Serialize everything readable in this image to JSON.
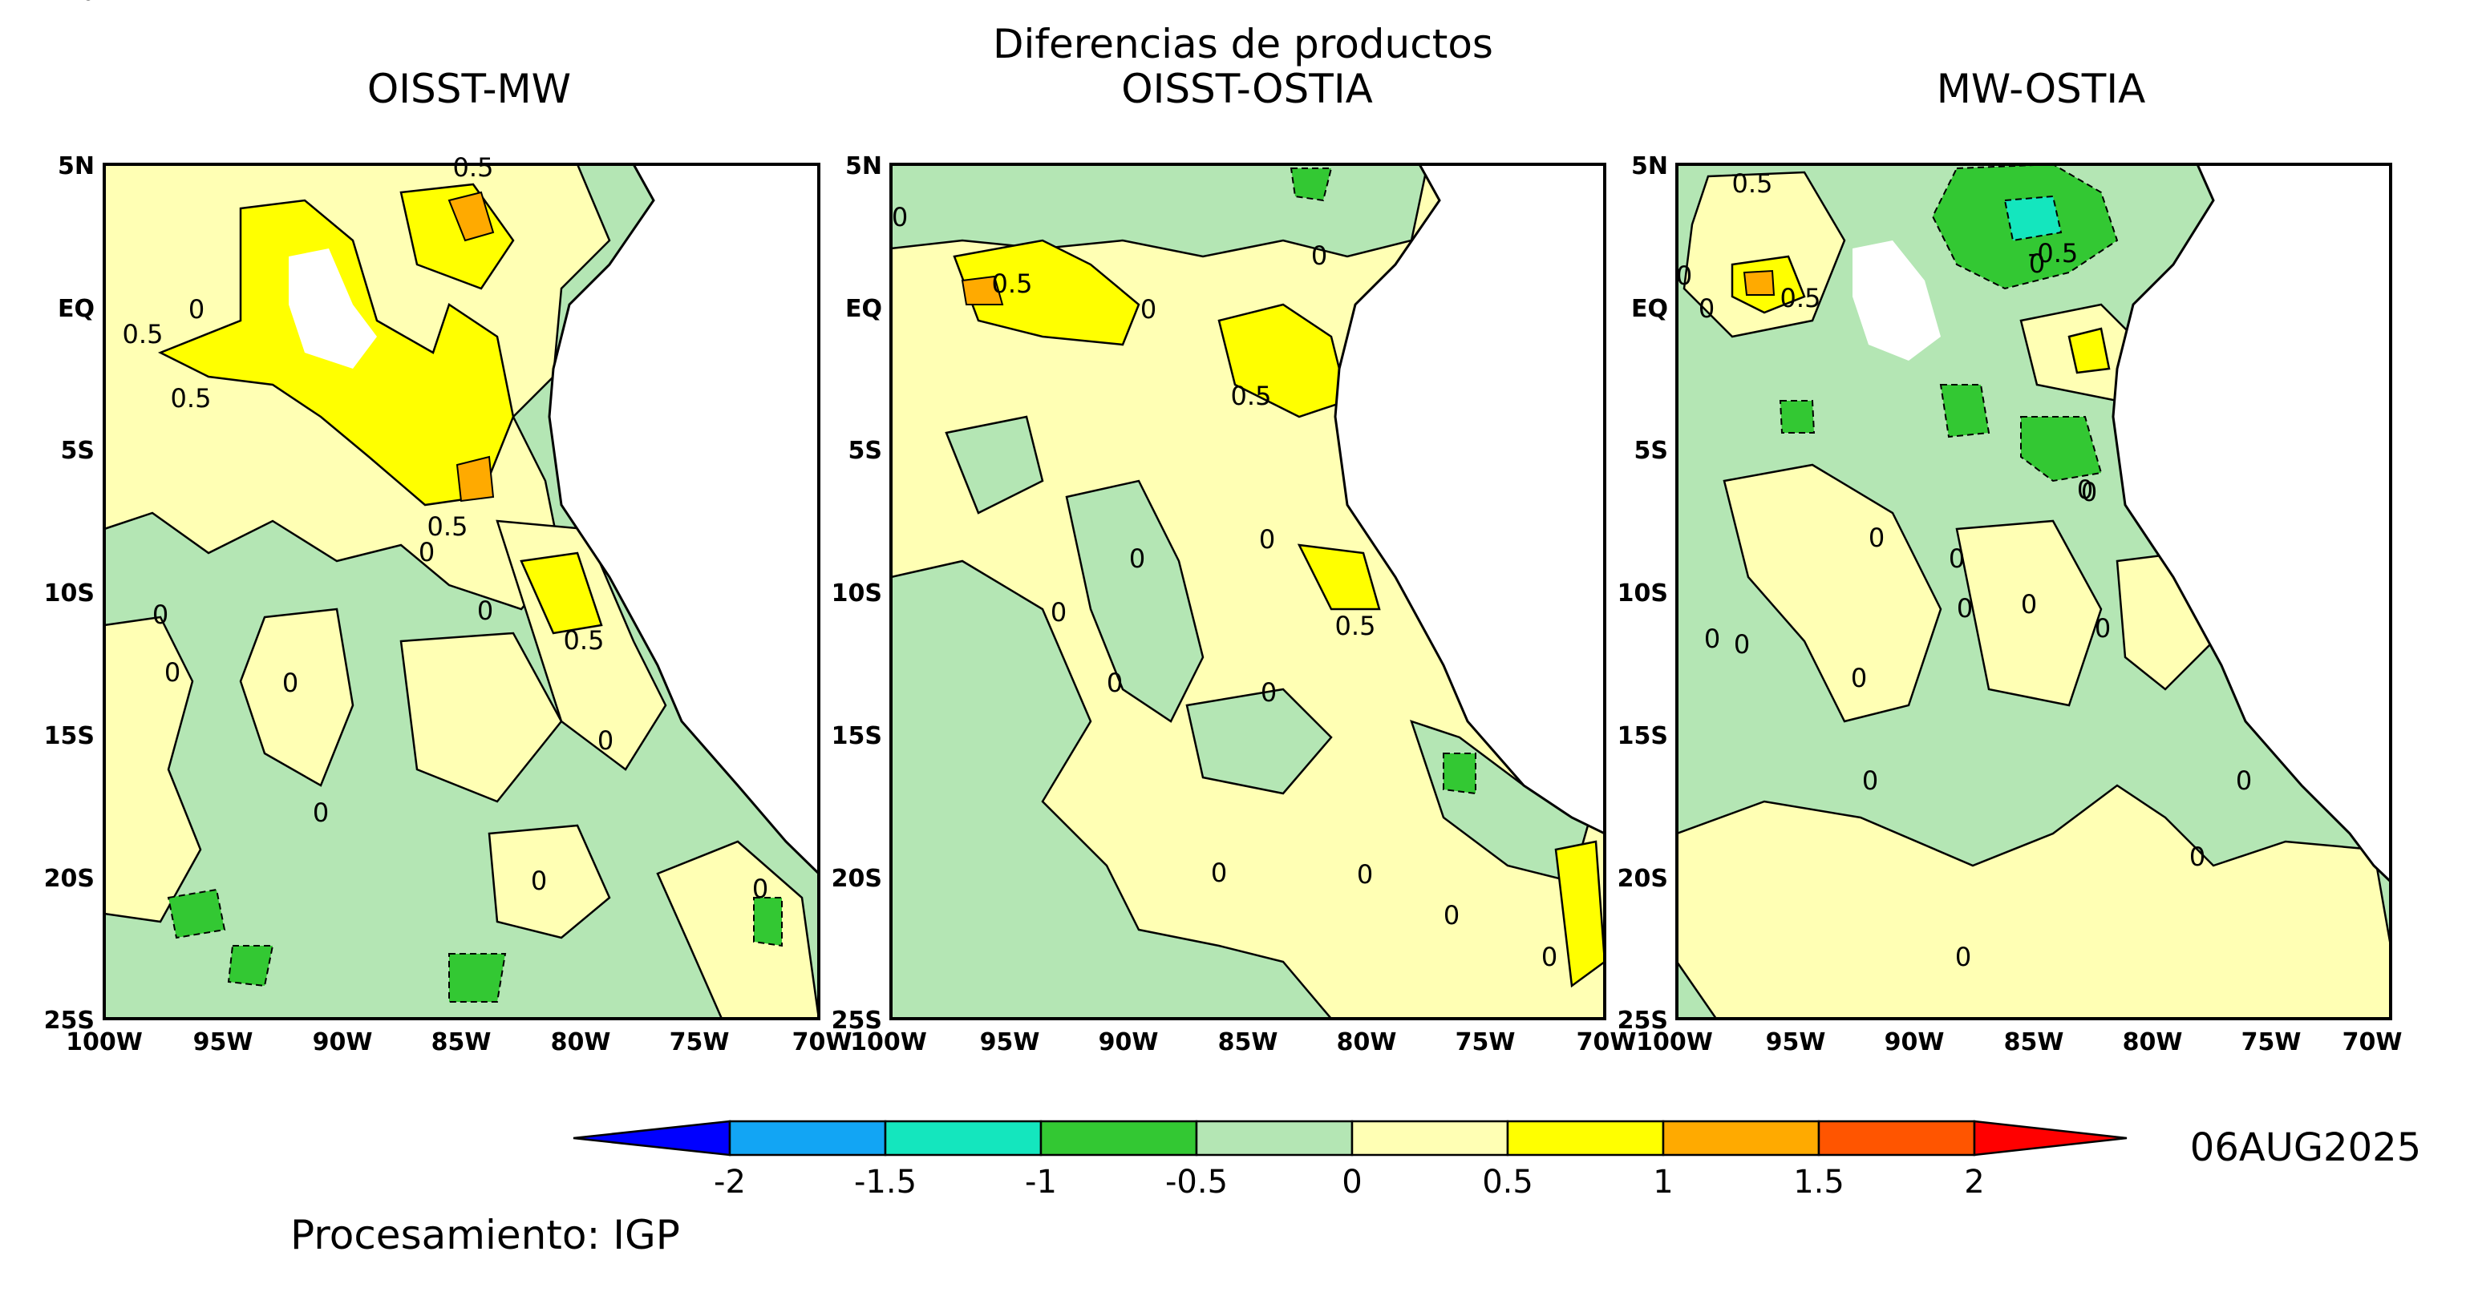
{
  "figure": {
    "title": "Diferencias de productos",
    "date": "06AUG2025",
    "credit": "Procesamiento: IGP"
  },
  "panels": [
    {
      "id": "oisst-mw",
      "title": "OISST-MW",
      "contour_labels": [
        "0.5",
        "0",
        "0.5",
        "0.5",
        "0.5",
        "0",
        "0",
        "0",
        "0",
        "0",
        "0.5",
        "0",
        "0",
        "0",
        "0",
        "0"
      ]
    },
    {
      "id": "oisst-ostia",
      "title": "OISST-OSTIA",
      "contour_labels": [
        "0",
        "0.5",
        "0",
        "0.5",
        "0",
        "0",
        "0.5",
        "0",
        "0",
        "0",
        "0",
        "0",
        "0",
        "0",
        "0"
      ]
    },
    {
      "id": "mw-ostia",
      "title": "MW-OSTIA",
      "contour_labels": [
        "0.5",
        "0",
        "0",
        "0.5",
        "-0.5",
        "0",
        "0",
        "0",
        "0",
        "0",
        "0",
        "0",
        "0",
        "0",
        "0",
        "0",
        "0",
        "0",
        "0",
        "0"
      ]
    }
  ],
  "axes": {
    "lat_ticks": [
      "5N",
      "EQ",
      "5S",
      "10S",
      "15S",
      "20S",
      "25S"
    ],
    "lon_ticks": [
      "100W",
      "95W",
      "90W",
      "85W",
      "80W",
      "75W",
      "70W"
    ]
  },
  "colorbar": {
    "tick_labels": [
      "-2",
      "-1.5",
      "-1",
      "-0.5",
      "0",
      "0.5",
      "1",
      "1.5",
      "2"
    ],
    "colors": [
      "#0000ff",
      "#12a5f4",
      "#14e6be",
      "#33c833",
      "#b4e6b4",
      "#ffffb4",
      "#ffff00",
      "#ffaa00",
      "#ff5500",
      "#ff0000"
    ]
  },
  "map_colors": {
    "land": "#ffffff",
    "neg_0_5": "#b4e6b4",
    "neg_1": "#33c833",
    "neg_1_5": "#14e6be",
    "pos_0_5": "#ffffb4",
    "pos_1": "#ffff00",
    "pos_1_5": "#ffaa00",
    "coast": "#000000"
  }
}
